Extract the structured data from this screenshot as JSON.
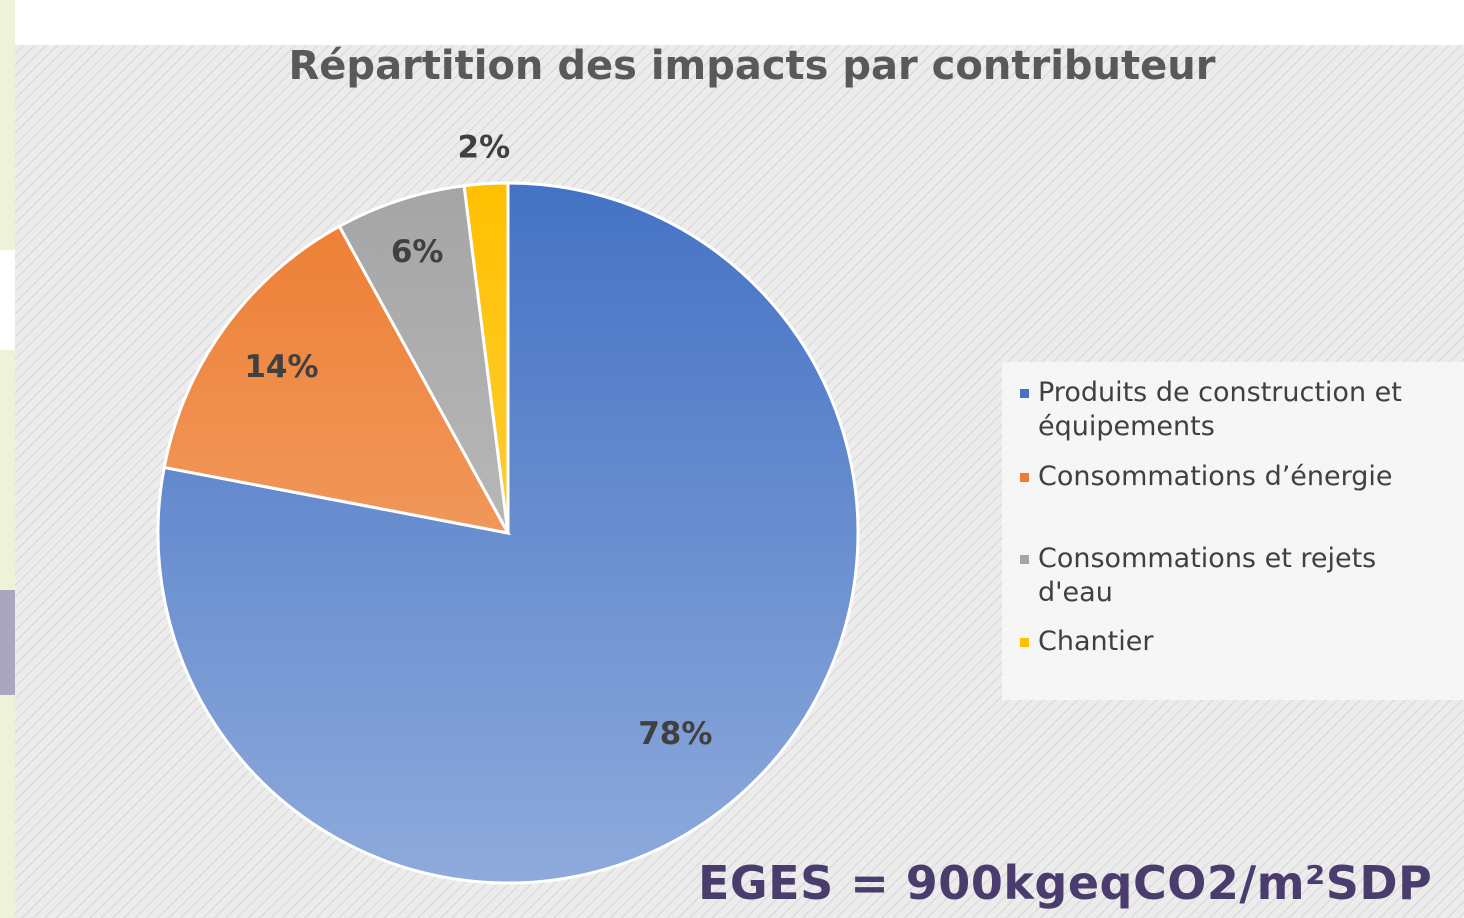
{
  "chart_data": {
    "type": "pie",
    "title": "Répartition des impacts par contributeur",
    "categories": [
      "Produits de construction et équipements",
      "Consommations d’énergie",
      "Consommations et rejets d'eau",
      "Chantier"
    ],
    "values": [
      78,
      14,
      6,
      2
    ],
    "value_labels": [
      "78%",
      "14%",
      "6%",
      "2%"
    ],
    "colors": [
      "#4472c4",
      "#ed7d31",
      "#a5a5a5",
      "#ffc000"
    ],
    "legend": "right",
    "annotation": "EGES = 900kgeqCO2/m²SDP"
  }
}
